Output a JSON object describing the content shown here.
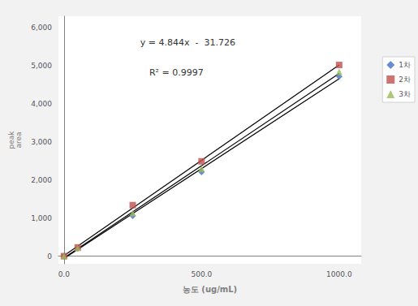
{
  "chart_data": {
    "type": "scatter",
    "x_label": "농도 (ug/mL)",
    "y_label": "peak\narea",
    "annotations": [
      "y = 4.844x  -  31.726",
      "R² = 0.9997"
    ],
    "series": [
      {
        "type": "line",
        "color": "#000000",
        "x": [
          0,
          1000
        ],
        "values": [
          -61.176911544,
          4661.536731634
        ]
      },
      {
        "name": "1차",
        "type": "scatter",
        "marker": "diamond",
        "color": "#4472C4",
        "x": [
          0,
          50,
          250,
          500,
          1000
        ],
        "values": [
          0,
          205,
          1060,
          2210,
          4720
        ]
      },
      {
        "type": "line",
        "color": "#000000",
        "x": [
          0,
          1000
        ],
        "values": [
          11.844077961,
          5023.388305847
        ]
      },
      {
        "name": "2차",
        "type": "scatter",
        "marker": "square",
        "color": "#C0504D",
        "x": [
          0,
          50,
          250,
          500,
          1000
        ],
        "values": [
          0,
          230,
          1340,
          2490,
          5020
        ]
      },
      {
        "type": "line",
        "color": "#000000",
        "x": [
          0,
          1000
        ],
        "values": [
          -45.59970015,
          4794.955022489
        ]
      },
      {
        "name": "3차",
        "type": "scatter",
        "marker": "triangle",
        "color": "#9BBB59",
        "x": [
          0,
          50,
          250,
          500,
          1000
        ],
        "values": [
          0,
          215,
          1130,
          2300,
          4840
        ]
      }
    ],
    "xlim": [
      -20,
      1080
    ],
    "ylim": [
      -200,
      6300
    ],
    "xticks": [
      {
        "value": 0,
        "label": "0.0"
      },
      {
        "value": 500,
        "label": "500.0"
      },
      {
        "value": 1000,
        "label": "1000.0"
      }
    ],
    "yticks": [
      0,
      {
        "value": 1000,
        "label": "1,000"
      },
      {
        "value": 2000,
        "label": "2,000"
      },
      {
        "value": 3000,
        "label": "3,000"
      },
      {
        "value": 4000,
        "label": "4,000"
      },
      {
        "value": 5000,
        "label": "5,000"
      },
      {
        "value": 6000,
        "label": "6,000"
      }
    ],
    "grid": false,
    "legend": "upper right"
  }
}
